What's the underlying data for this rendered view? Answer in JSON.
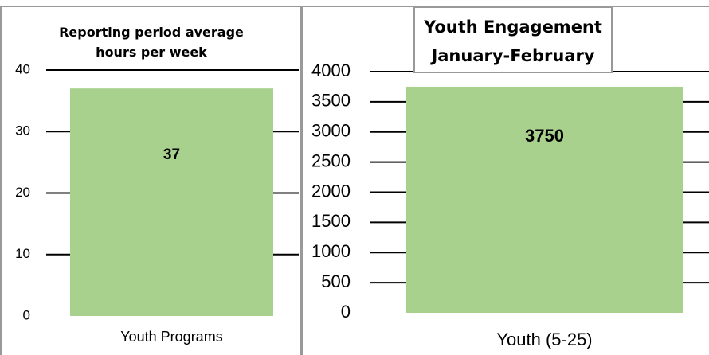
{
  "chart_data": [
    {
      "type": "bar",
      "title": "Reporting period average hours per week",
      "categories": [
        "Youth Programs"
      ],
      "values": [
        37
      ],
      "color": "#a9d18e",
      "ylim": [
        0,
        40
      ],
      "yticks": [
        0,
        10,
        20,
        30,
        40
      ],
      "grid": true
    },
    {
      "type": "bar",
      "title": "Youth Engagement January-February",
      "categories": [
        "Youth (5-25)"
      ],
      "values": [
        3750
      ],
      "color": "#a9d18e",
      "ylim": [
        0,
        4000
      ],
      "yticks": [
        0,
        500,
        1000,
        1500,
        2000,
        2500,
        3000,
        3500,
        4000
      ],
      "grid": true
    }
  ]
}
